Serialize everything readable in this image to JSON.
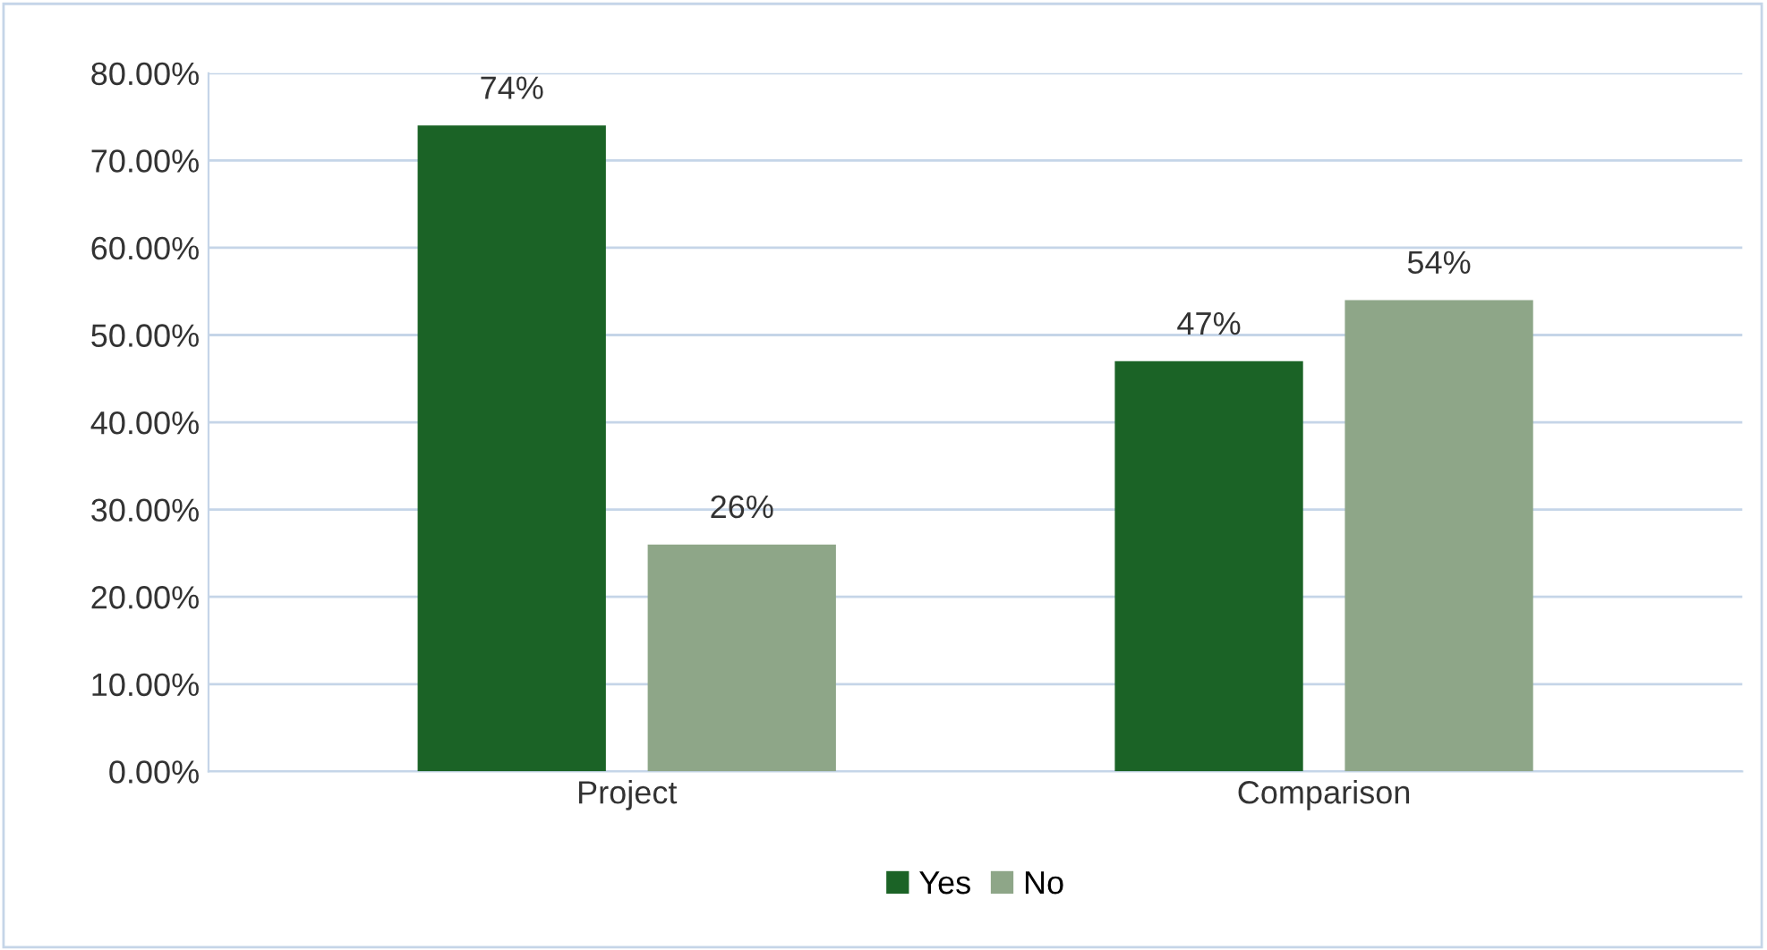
{
  "chart_data": {
    "type": "bar",
    "categories": [
      "Project",
      "Comparison"
    ],
    "series": [
      {
        "name": "Yes",
        "color": "#1b6326",
        "values": [
          74,
          47
        ],
        "value_labels": [
          "74%",
          "47%"
        ]
      },
      {
        "name": "No",
        "color": "#8ea688",
        "values": [
          26,
          54
        ],
        "value_labels": [
          "26%",
          "54%"
        ]
      }
    ],
    "ylim": [
      0,
      80
    ],
    "yticks": [
      {
        "value": 0,
        "label": "0.00%"
      },
      {
        "value": 10,
        "label": "10.00%"
      },
      {
        "value": 20,
        "label": "20.00%"
      },
      {
        "value": 30,
        "label": "30.00%"
      },
      {
        "value": 40,
        "label": "40.00%"
      },
      {
        "value": 50,
        "label": "50.00%"
      },
      {
        "value": 60,
        "label": "60.00%"
      },
      {
        "value": 70,
        "label": "70.00%"
      },
      {
        "value": 80,
        "label": "80.00%"
      }
    ],
    "grid": "y",
    "legend": "bottom"
  }
}
